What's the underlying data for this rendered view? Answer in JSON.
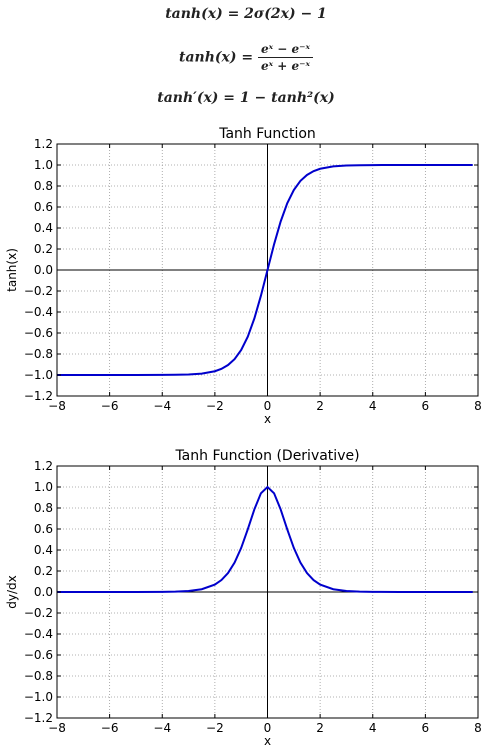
{
  "formulas": {
    "f1": "tanh(x) = 2σ(2x) − 1",
    "f2_lhs": "tanh(x) =",
    "f2_num": "eˣ − e⁻ˣ",
    "f2_den": "eˣ + e⁻ˣ",
    "f3": "tanh′(x) = 1 − tanh²(x)"
  },
  "chart_data": [
    {
      "type": "line",
      "title": "Tanh Function",
      "xlabel": "x",
      "ylabel": "tanh(x)",
      "xlim": [
        -8,
        8
      ],
      "ylim": [
        -1.2,
        1.2
      ],
      "xticks": [
        -8,
        -6,
        -4,
        -2,
        0,
        2,
        4,
        6,
        8
      ],
      "xtick_labels": [
        "−8",
        "−6",
        "−4",
        "−2",
        "0",
        "2",
        "4",
        "6",
        "8"
      ],
      "yticks": [
        -1.2,
        -1.0,
        -0.8,
        -0.6,
        -0.4,
        -0.2,
        0.0,
        0.2,
        0.4,
        0.6,
        0.8,
        1.0,
        1.2
      ],
      "ytick_labels": [
        "−1.2",
        "−1.0",
        "−0.8",
        "−0.6",
        "−0.4",
        "−0.2",
        "0.0",
        "0.2",
        "0.4",
        "0.6",
        "0.8",
        "1.0",
        "1.2"
      ],
      "grid": true,
      "series": [
        {
          "color": "#0000cc",
          "x": [
            -8,
            -7,
            -6,
            -5,
            -4,
            -3.5,
            -3,
            -2.5,
            -2,
            -1.75,
            -1.5,
            -1.25,
            -1,
            -0.75,
            -0.5,
            -0.25,
            0,
            0.25,
            0.5,
            0.75,
            1,
            1.25,
            1.5,
            1.75,
            2,
            2.5,
            3,
            3.5,
            4,
            5,
            6,
            7,
            7.8
          ],
          "y": [
            -1.0,
            -1.0,
            -1.0,
            -0.9999,
            -0.9993,
            -0.9982,
            -0.9951,
            -0.9866,
            -0.964,
            -0.9414,
            -0.9051,
            -0.8483,
            -0.7616,
            -0.6351,
            -0.4621,
            -0.2449,
            0.0,
            0.2449,
            0.4621,
            0.6351,
            0.7616,
            0.8483,
            0.9051,
            0.9414,
            0.964,
            0.9866,
            0.9951,
            0.9982,
            0.9993,
            0.9999,
            1.0,
            1.0,
            1.0
          ]
        }
      ]
    },
    {
      "type": "line",
      "title": "Tanh Function (Derivative)",
      "xlabel": "x",
      "ylabel": "dy/dx",
      "xlim": [
        -8,
        8
      ],
      "ylim": [
        -1.2,
        1.2
      ],
      "xticks": [
        -8,
        -6,
        -4,
        -2,
        0,
        2,
        4,
        6,
        8
      ],
      "xtick_labels": [
        "−8",
        "−6",
        "−4",
        "−2",
        "0",
        "2",
        "4",
        "6",
        "8"
      ],
      "yticks": [
        -1.2,
        -1.0,
        -0.8,
        -0.6,
        -0.4,
        -0.2,
        0.0,
        0.2,
        0.4,
        0.6,
        0.8,
        1.0,
        1.2
      ],
      "ytick_labels": [
        "−1.2",
        "−1.0",
        "−0.8",
        "−0.6",
        "−0.4",
        "−0.2",
        "0.0",
        "0.2",
        "0.4",
        "0.6",
        "0.8",
        "1.0",
        "1.2"
      ],
      "grid": true,
      "series": [
        {
          "color": "#0000cc",
          "x": [
            -8,
            -7,
            -6,
            -5,
            -4,
            -3.5,
            -3,
            -2.5,
            -2,
            -1.75,
            -1.5,
            -1.25,
            -1,
            -0.75,
            -0.5,
            -0.25,
            0,
            0.25,
            0.5,
            0.75,
            1,
            1.25,
            1.5,
            1.75,
            2,
            2.5,
            3,
            3.5,
            4,
            5,
            6,
            7,
            7.8
          ],
          "y": [
            0.0,
            0.0,
            0.0,
            0.0002,
            0.0013,
            0.0036,
            0.0099,
            0.0266,
            0.0707,
            0.1138,
            0.1807,
            0.2804,
            0.42,
            0.5966,
            0.7864,
            0.94,
            1.0,
            0.94,
            0.7864,
            0.5966,
            0.42,
            0.2804,
            0.1807,
            0.1138,
            0.0707,
            0.0266,
            0.0099,
            0.0036,
            0.0013,
            0.0002,
            0.0,
            0.0,
            0.0
          ]
        }
      ]
    }
  ]
}
